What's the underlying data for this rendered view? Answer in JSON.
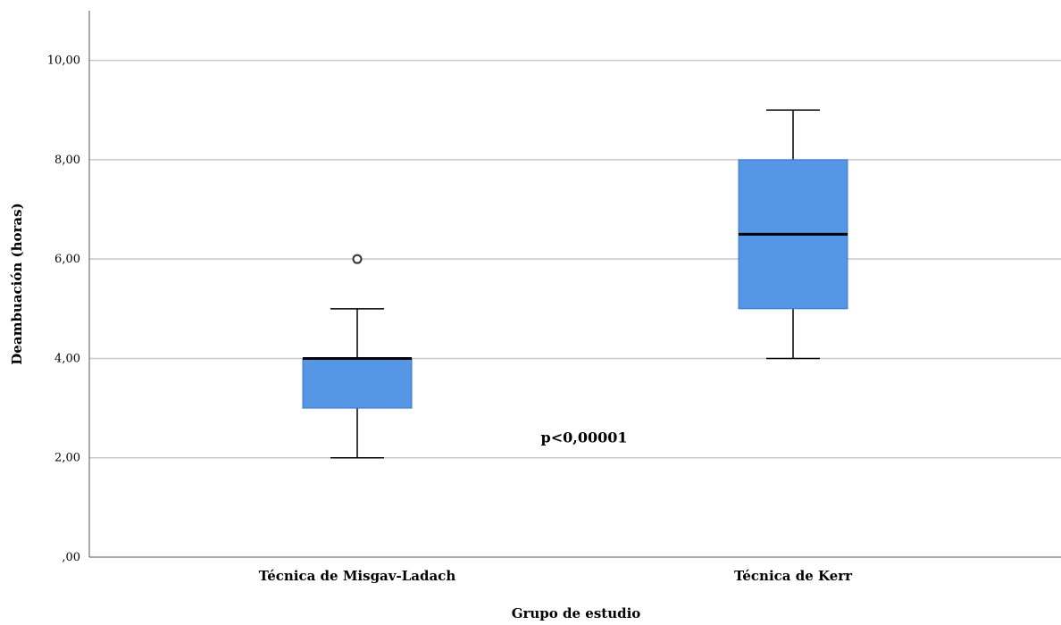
{
  "chart_data": {
    "type": "boxplot",
    "title": "",
    "xlabel": "Grupo de estudio",
    "ylabel": "Deambuación (horas)",
    "ylim": [
      0,
      11
    ],
    "yticks": [
      0,
      2,
      4,
      6,
      8,
      10
    ],
    "ytick_labels": [
      ",00",
      "2,00",
      "4,00",
      "6,00",
      "8,00",
      "10,00"
    ],
    "grid": true,
    "box_color": "#5596e6",
    "categories": [
      "Técnica de Misgav-Ladach",
      "Técnica de Kerr"
    ],
    "boxes": [
      {
        "category": "Técnica de Misgav-Ladach",
        "whisker_low": 2,
        "q1": 3,
        "median": 4,
        "q3": 4,
        "whisker_high": 5,
        "outliers": [
          6
        ]
      },
      {
        "category": "Técnica de Kerr",
        "whisker_low": 4,
        "q1": 5,
        "median": 6.5,
        "q3": 8,
        "whisker_high": 9,
        "outliers": []
      }
    ],
    "annotations": [
      {
        "text": "p<0,00001",
        "x": 1.5,
        "y": 2.4
      }
    ]
  }
}
